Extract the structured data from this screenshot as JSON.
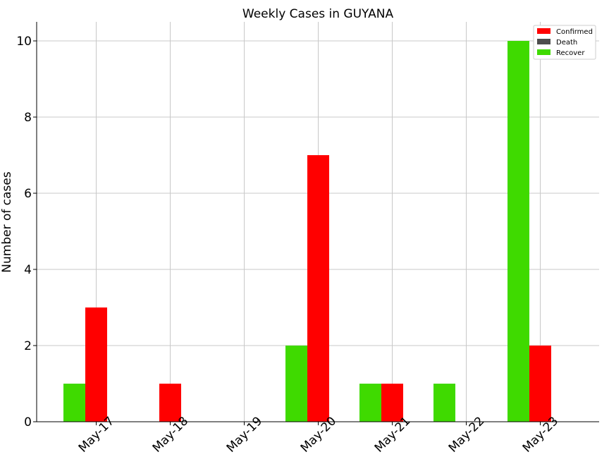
{
  "chart_data": {
    "type": "bar",
    "title": "Weekly Cases in GUYANA",
    "xlabel": "",
    "ylabel": "Number of cases",
    "categories": [
      "May-17",
      "May-18",
      "May-19",
      "May-20",
      "May-21",
      "May-22",
      "May-23"
    ],
    "series": [
      {
        "name": "Confirmed",
        "color": "#ff0000",
        "values": [
          3,
          1,
          0,
          7,
          1,
          0,
          2
        ]
      },
      {
        "name": "Death",
        "color": "#4d4d4d",
        "values": [
          0,
          0,
          0,
          0,
          0,
          0,
          0
        ]
      },
      {
        "name": "Recover",
        "color": "#3fda00",
        "values": [
          1,
          0,
          0,
          2,
          1,
          1,
          10
        ]
      }
    ],
    "ylim": [
      0,
      10.5
    ],
    "yticks": [
      0,
      2,
      4,
      6,
      8,
      10
    ],
    "grid": true,
    "legend": "top-right"
  }
}
